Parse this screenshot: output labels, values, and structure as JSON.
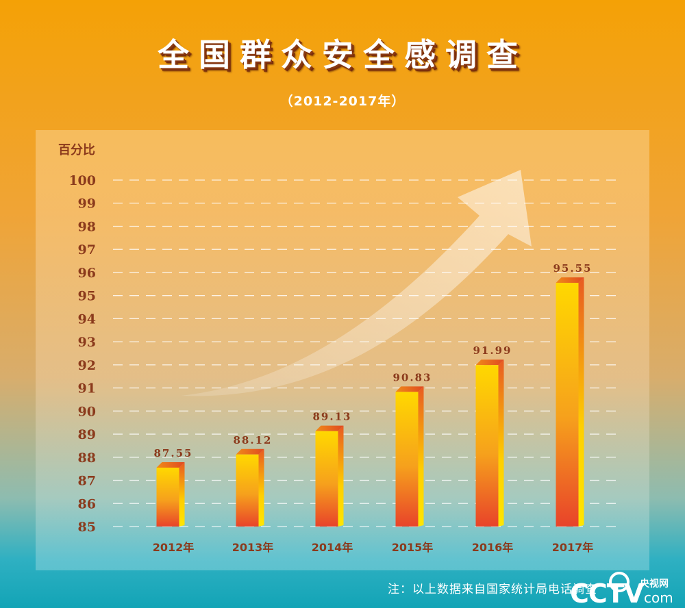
{
  "title": "全国群众安全感调查",
  "subtitle": "（2012-2017年）",
  "note": "注：以上数据来自国家统计局电话调查",
  "logo": {
    "brand": "CCTV.com",
    "cn": "央视网"
  },
  "colors": {
    "bar_top": "#ffd400",
    "bar_bottom": "#e8452a",
    "label": "#8b3a1c",
    "grid": "#ffffff"
  },
  "chart_data": {
    "type": "bar",
    "title": "全国群众安全感调查",
    "subtitle": "（2012-2017年）",
    "ylabel": "百分比",
    "xlabel": "",
    "categories": [
      "2012年",
      "2013年",
      "2014年",
      "2015年",
      "2016年",
      "2017年"
    ],
    "values": [
      87.55,
      88.12,
      89.13,
      90.83,
      91.99,
      95.55
    ],
    "value_labels": [
      "87.55",
      "88.12",
      "89.13",
      "90.83",
      "91.99",
      "95.55"
    ],
    "ylim": [
      85,
      100
    ],
    "yticks": [
      "85",
      "86",
      "87",
      "88",
      "89",
      "90",
      "91",
      "92",
      "93",
      "94",
      "95",
      "96",
      "97",
      "98",
      "99",
      "100"
    ],
    "grid": true,
    "legend": "none"
  }
}
